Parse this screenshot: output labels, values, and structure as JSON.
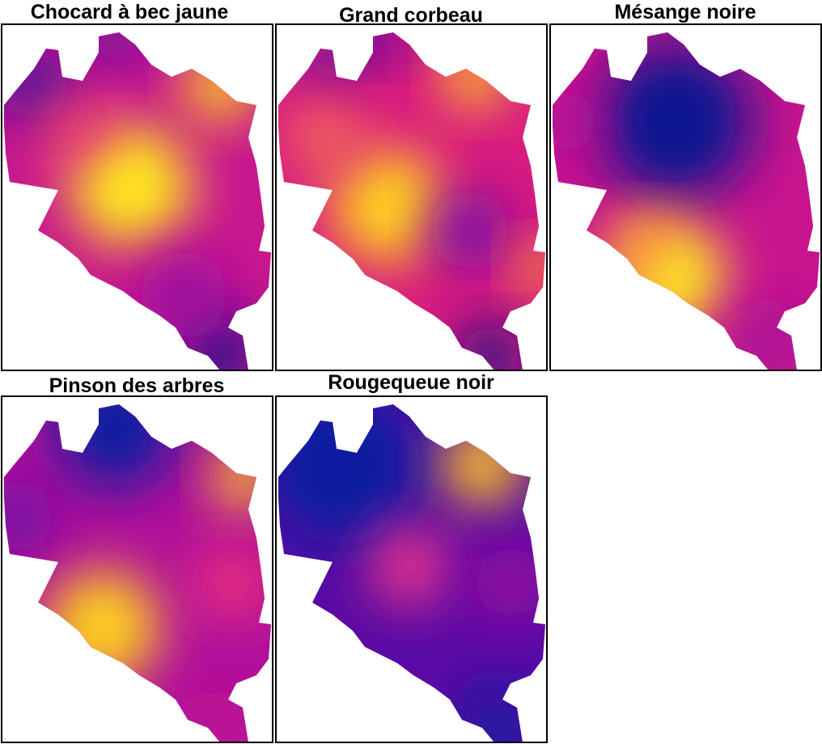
{
  "panels": [
    {
      "title": "Chocard à bec jaune"
    },
    {
      "title": "Grand corbeau"
    },
    {
      "title": "Mésange noire"
    },
    {
      "title": "Pinson des arbres"
    },
    {
      "title": "Rougequeue noir"
    }
  ]
}
